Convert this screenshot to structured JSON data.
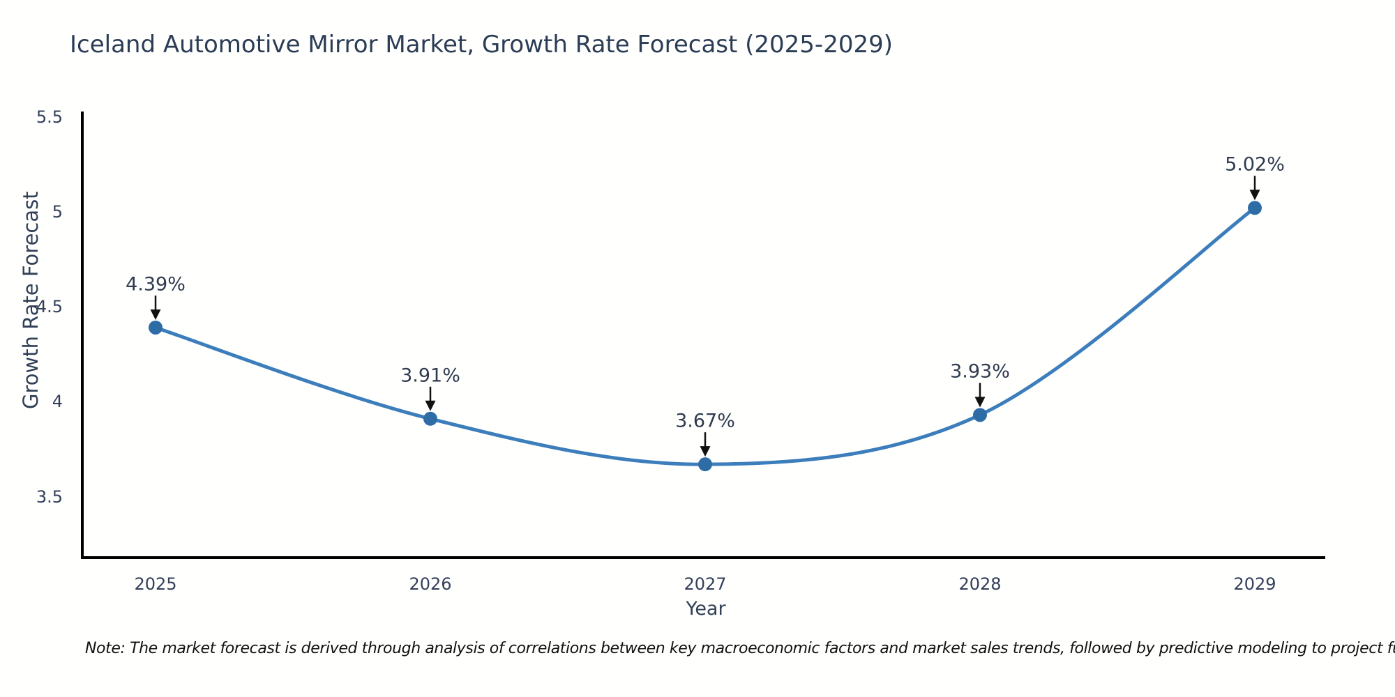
{
  "title": "Iceland Automotive Mirror Market, Growth Rate Forecast (2025-2029)",
  "note": "Note: The market forecast is derived through analysis of correlations between key macroeconomic factors and market sales trends, followed by predictive modeling to project future sales",
  "chart_data": {
    "type": "line",
    "title": "Iceland Automotive Mirror Market, Growth Rate Forecast (2025-2029)",
    "x": [
      2025,
      2026,
      2027,
      2028,
      2029
    ],
    "values": [
      4.39,
      3.91,
      3.67,
      3.93,
      5.02
    ],
    "point_labels": [
      "4.39%",
      "3.91%",
      "3.67%",
      "3.93%",
      "5.02%"
    ],
    "xtick_labels": [
      "2025",
      "2026",
      "2027",
      "2028",
      "2029"
    ],
    "yticks": [
      3.5,
      4,
      4.5,
      5,
      5.5
    ],
    "ytick_labels": [
      "3.5",
      "4",
      "4.5",
      "5",
      "5.5"
    ],
    "xlabel": "Year",
    "ylabel": "Growth Rate Forecast",
    "ylim": [
      3.18,
      5.52
    ],
    "grid": false,
    "legend": "none",
    "line_color": "#3c7dbb",
    "marker_color": "#2e6ca6",
    "axis_color": "#000000",
    "text_color": "#2f3f55",
    "annotation_arrow_color": "#111111"
  }
}
